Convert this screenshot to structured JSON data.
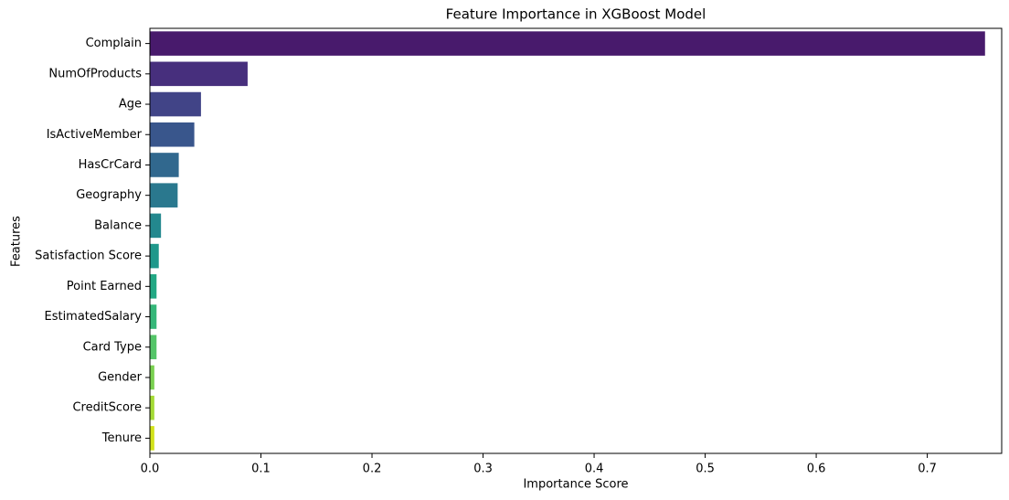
{
  "chart_data": {
    "type": "barh",
    "title": "Feature Importance in XGBoost Model",
    "xlabel": "Importance Score",
    "ylabel": "Features",
    "categories": [
      "Complain",
      "NumOfProducts",
      "Age",
      "IsActiveMember",
      "HasCrCard",
      "Geography",
      "Balance",
      "Satisfaction Score",
      "Point Earned",
      "EstimatedSalary",
      "Card Type",
      "Gender",
      "CreditScore",
      "Tenure"
    ],
    "values": [
      0.752,
      0.088,
      0.046,
      0.04,
      0.026,
      0.025,
      0.01,
      0.008,
      0.006,
      0.006,
      0.006,
      0.004,
      0.004,
      0.004
    ],
    "colors": [
      "#481a6c",
      "#472f7d",
      "#414487",
      "#39568c",
      "#31688e",
      "#2a788e",
      "#23888e",
      "#1f988b",
      "#22a884",
      "#35b779",
      "#54c568",
      "#7ad151",
      "#a5db36",
      "#d2e21b"
    ],
    "xlim": [
      0,
      0.767
    ],
    "xticks": [
      {
        "value": 0,
        "label": "0.0"
      },
      0.1,
      0.2,
      0.3,
      0.4,
      0.5,
      0.6,
      0.7
    ],
    "grid": false
  }
}
